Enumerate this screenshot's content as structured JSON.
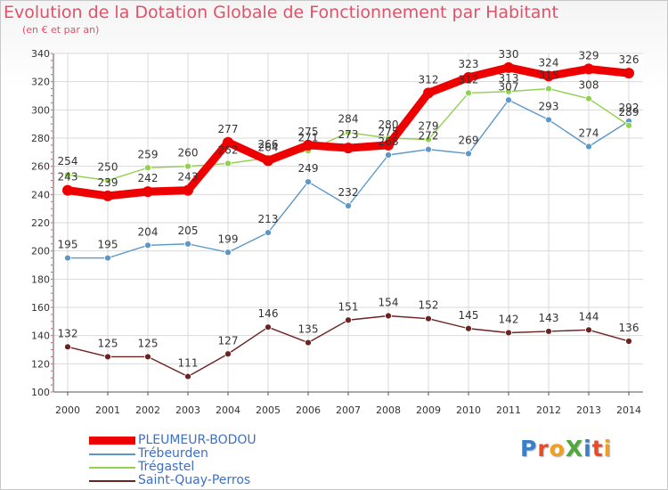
{
  "title": "Evolution de la Dotation Globale de Fonctionnement par Habitant",
  "subtitle": "(en € et par an)",
  "logo": {
    "text": "ProXiti",
    "letters": [
      "P",
      "r",
      "o",
      "X",
      "i",
      "t",
      "i"
    ],
    "colors": [
      "#3a80c8",
      "#e84b2a",
      "#f0a020",
      "#4fa83a",
      "#3a80c8",
      "#e84b2a",
      "#f0a020"
    ]
  },
  "chart_data": {
    "type": "line",
    "title": "Evolution de la Dotation Globale de Fonctionnement par Habitant",
    "subtitle": "(en € et par an)",
    "x": [
      "2000",
      "2001",
      "2002",
      "2003",
      "2004",
      "2005",
      "2006",
      "2007",
      "2008",
      "2009",
      "2010",
      "2011",
      "2012",
      "2013",
      "2014"
    ],
    "ylim": [
      100,
      340
    ],
    "yticks": [
      100,
      120,
      140,
      160,
      180,
      200,
      220,
      240,
      260,
      280,
      300,
      320,
      340
    ],
    "grid": true,
    "legend_position": "bottom-left",
    "series": [
      {
        "name": "PLEUMEUR-BODOU",
        "color": "#ee0000",
        "values": [
          243,
          239,
          242,
          243,
          277,
          264,
          275,
          273,
          275,
          312,
          323,
          330,
          324,
          329,
          326
        ]
      },
      {
        "name": "Trébeurden",
        "color": "#5b97c9",
        "values": [
          195,
          195,
          204,
          205,
          199,
          213,
          249,
          232,
          268,
          272,
          269,
          307,
          293,
          274,
          292
        ]
      },
      {
        "name": "Trégastel",
        "color": "#92d050",
        "values": [
          254,
          250,
          259,
          260,
          262,
          266,
          271,
          284,
          280,
          279,
          312,
          313,
          315,
          308,
          289
        ]
      },
      {
        "name": "Saint-Quay-Perros",
        "color": "#6b2322",
        "values": [
          132,
          125,
          125,
          111,
          127,
          146,
          135,
          151,
          154,
          152,
          145,
          142,
          143,
          144,
          136
        ]
      }
    ],
    "data_labels": [
      {
        "series": 0,
        "values": [
          "243",
          "239",
          "242",
          "243",
          "277",
          "264",
          "275",
          "273",
          "275",
          "312",
          "323",
          "330",
          "324",
          "329",
          "326"
        ]
      },
      {
        "series": 1,
        "values": [
          "195",
          "195",
          "204",
          "205",
          "199",
          "213",
          "249",
          "232",
          "268",
          "272",
          "269",
          "307",
          "293",
          "274",
          "292"
        ]
      },
      {
        "series": 2,
        "values": [
          "254",
          "250",
          "259",
          "260",
          "262",
          "266",
          "271",
          "284",
          "280",
          "279",
          "312",
          "313",
          "315",
          "308",
          "289"
        ]
      },
      {
        "series": 3,
        "values": [
          "132",
          "125",
          "125",
          "111",
          "127",
          "146",
          "135",
          "151",
          "154",
          "152",
          "145",
          "142",
          "143",
          "144",
          "136"
        ]
      }
    ]
  }
}
